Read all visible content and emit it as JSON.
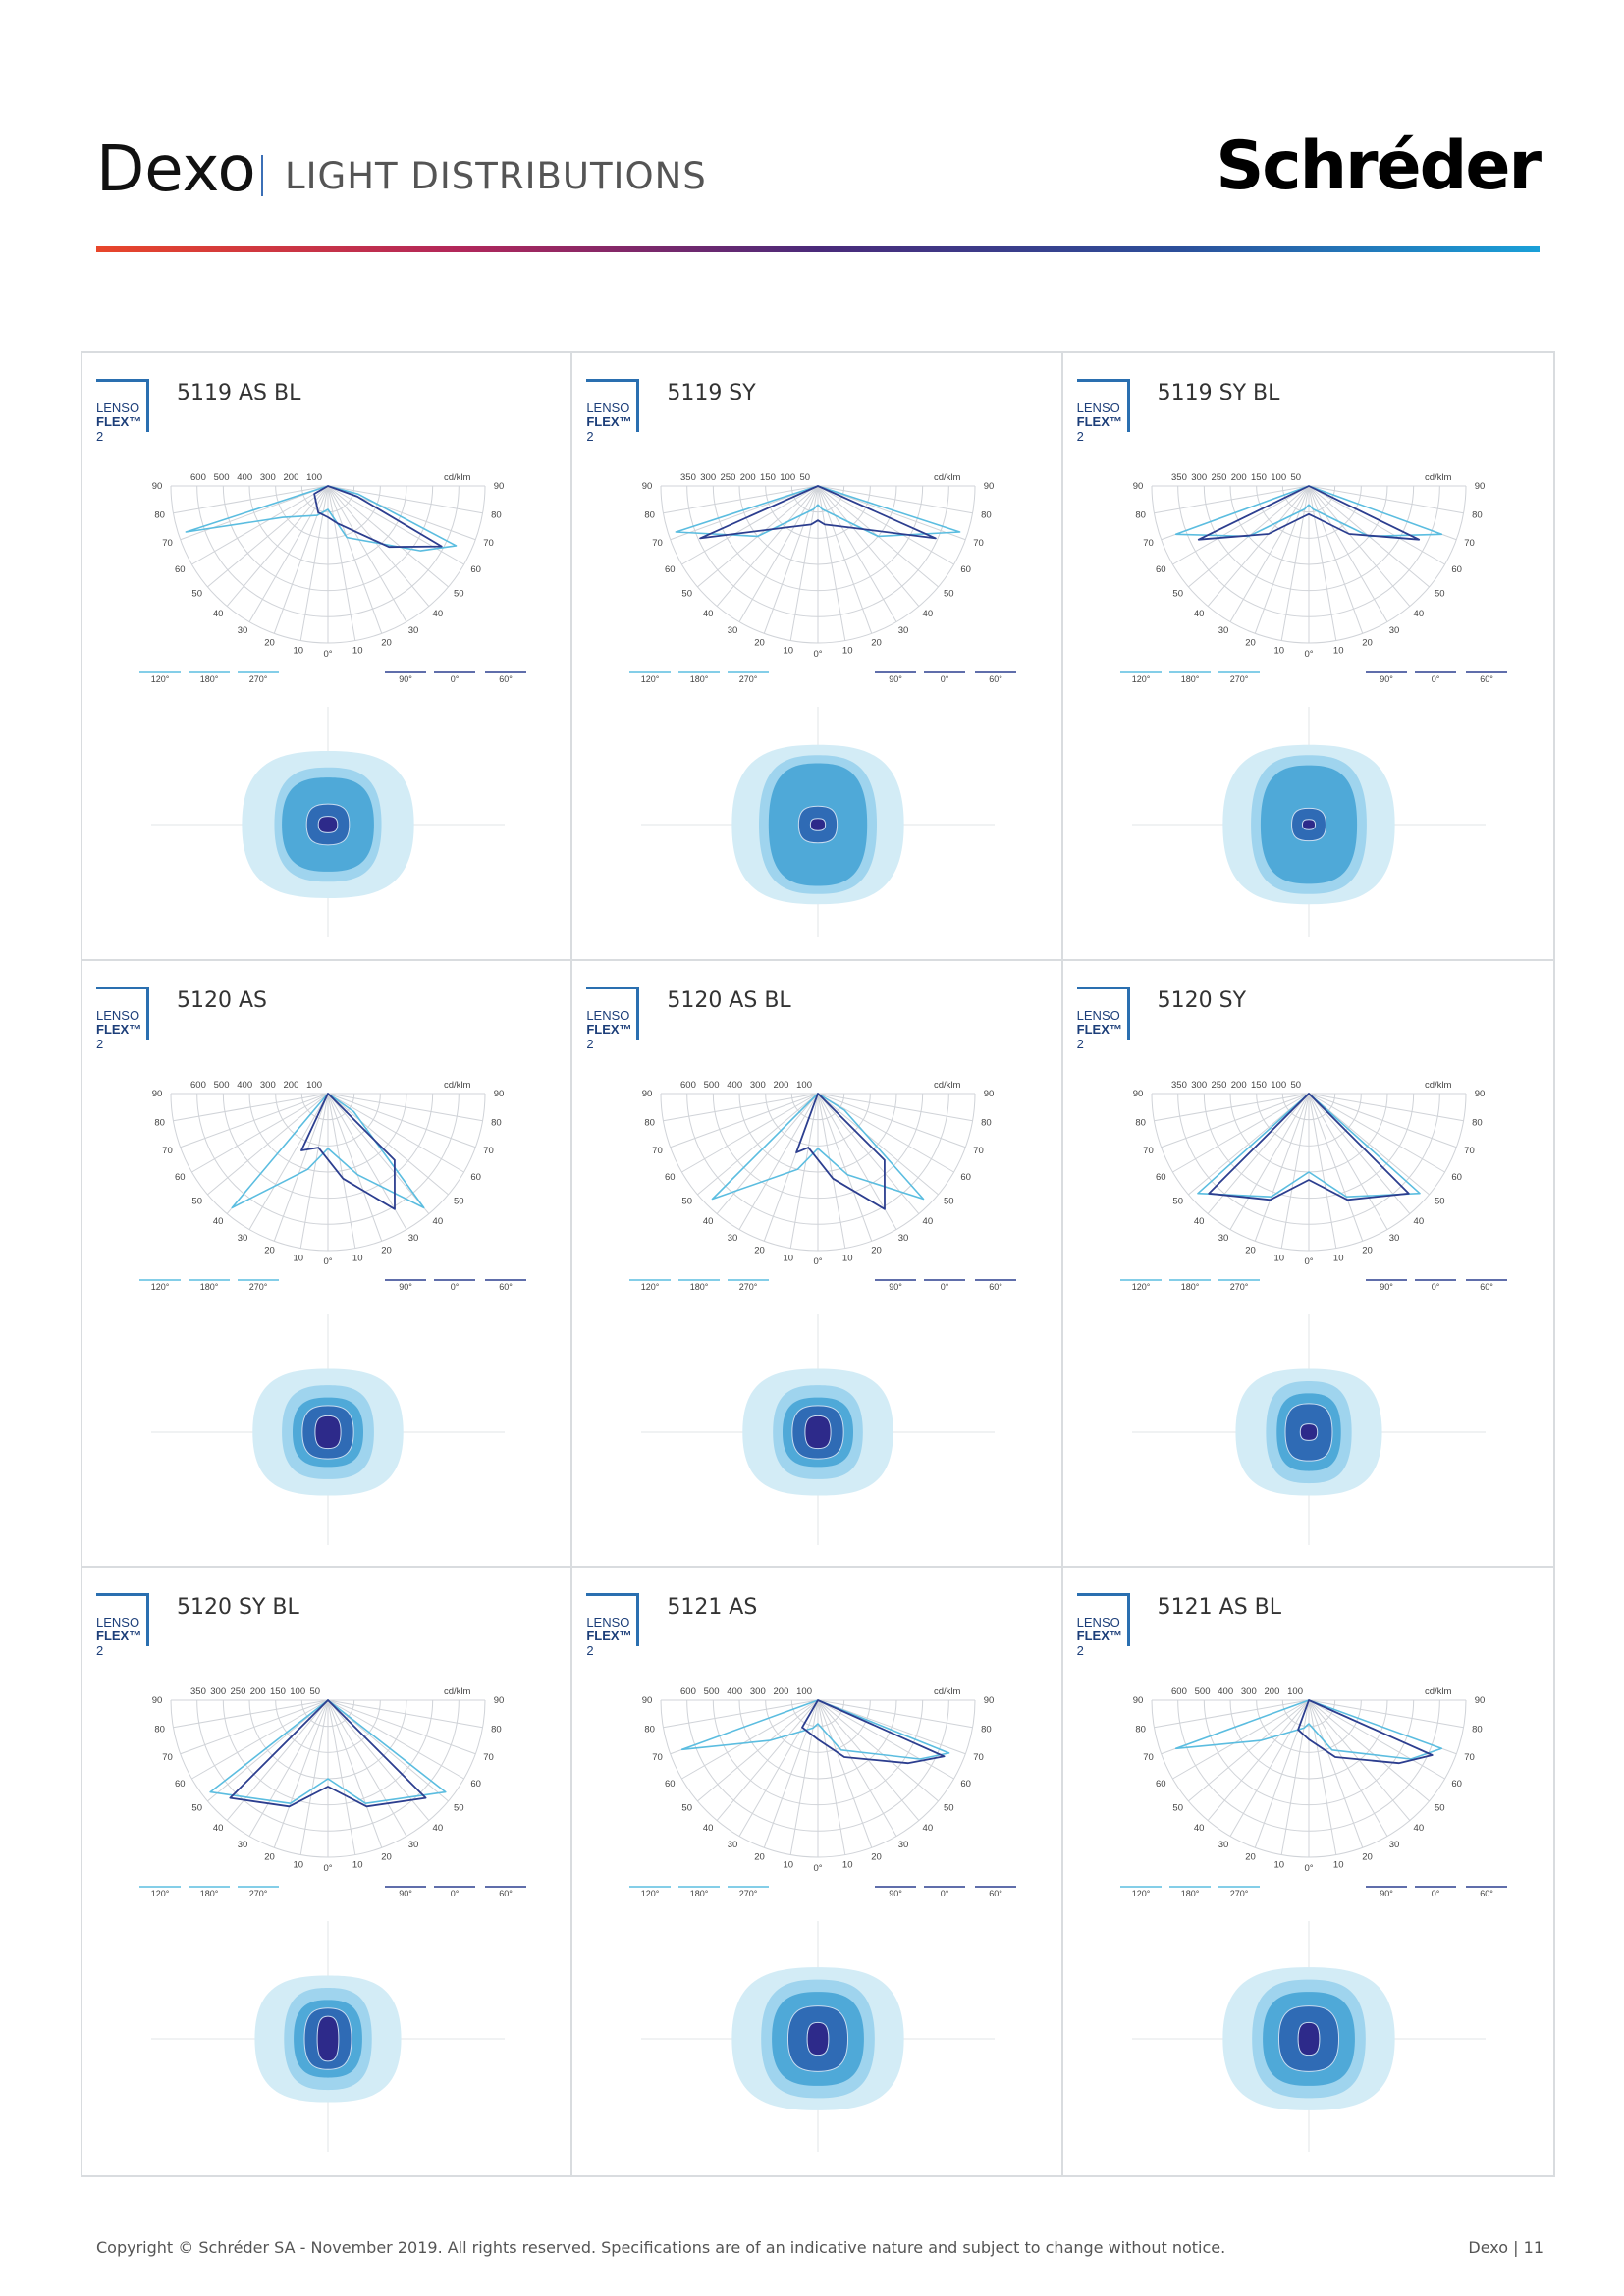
{
  "header": {
    "title": "Dexo",
    "subtitle": "LIGHT DISTRIBUTIONS",
    "brand": "Schréder"
  },
  "colors": {
    "grid": "#d0d3d8",
    "curve_light": "#5bbde0",
    "curve_dark": "#2c3e8f",
    "iso1": "#d3ecf6",
    "iso2": "#9fd4ee",
    "iso3": "#4fa9d8",
    "iso4": "#2f6bb5",
    "iso5": "#2d2a8a"
  },
  "logo": {
    "lenso": "LENSO",
    "flex": "FLEX",
    "tm": "™",
    "two": "2"
  },
  "polar_labels": {
    "angles_left": [
      "90",
      "80",
      "70",
      "60",
      "50",
      "40",
      "30",
      "20",
      "10"
    ],
    "angles_right": [
      "90",
      "80",
      "70",
      "60",
      "50",
      "40",
      "30",
      "20",
      "10"
    ],
    "zero": "0°",
    "unit": "cd/klm",
    "legend": [
      "120°",
      "180°",
      "270°",
      "90°",
      "0°",
      "60°"
    ]
  },
  "cells": [
    {
      "name": "5119 AS BL",
      "scale": [
        "600",
        "500",
        "400",
        "300",
        "200",
        "100"
      ],
      "shape": "as-bl-wide"
    },
    {
      "name": "5119 SY",
      "scale": [
        "350",
        "300",
        "250",
        "200",
        "150",
        "100",
        "50"
      ],
      "shape": "sy-wide"
    },
    {
      "name": "5119 SY BL",
      "scale": [
        "350",
        "300",
        "250",
        "200",
        "150",
        "100",
        "50"
      ],
      "shape": "sy-bl-wide"
    },
    {
      "name": "5120 AS",
      "scale": [
        "600",
        "500",
        "400",
        "300",
        "200",
        "100"
      ],
      "shape": "as-mid"
    },
    {
      "name": "5120 AS BL",
      "scale": [
        "600",
        "500",
        "400",
        "300",
        "200",
        "100"
      ],
      "shape": "as-bl-mid"
    },
    {
      "name": "5120 SY",
      "scale": [
        "350",
        "300",
        "250",
        "200",
        "150",
        "100",
        "50"
      ],
      "shape": "sy-mid"
    },
    {
      "name": "5120 SY BL",
      "scale": [
        "350",
        "300",
        "250",
        "200",
        "150",
        "100",
        "50"
      ],
      "shape": "sy-bl-mid"
    },
    {
      "name": "5121 AS",
      "scale": [
        "600",
        "500",
        "400",
        "300",
        "200",
        "100"
      ],
      "shape": "as-wide2"
    },
    {
      "name": "5121 AS BL",
      "scale": [
        "600",
        "500",
        "400",
        "300",
        "200",
        "100"
      ],
      "shape": "as-bl-wide2"
    }
  ],
  "footer": {
    "copyright": "Copyright © Schréder SA - November 2019. All rights reserved. Specifications are of an indicative nature and subject to change without notice.",
    "page": "Dexo | 11"
  }
}
